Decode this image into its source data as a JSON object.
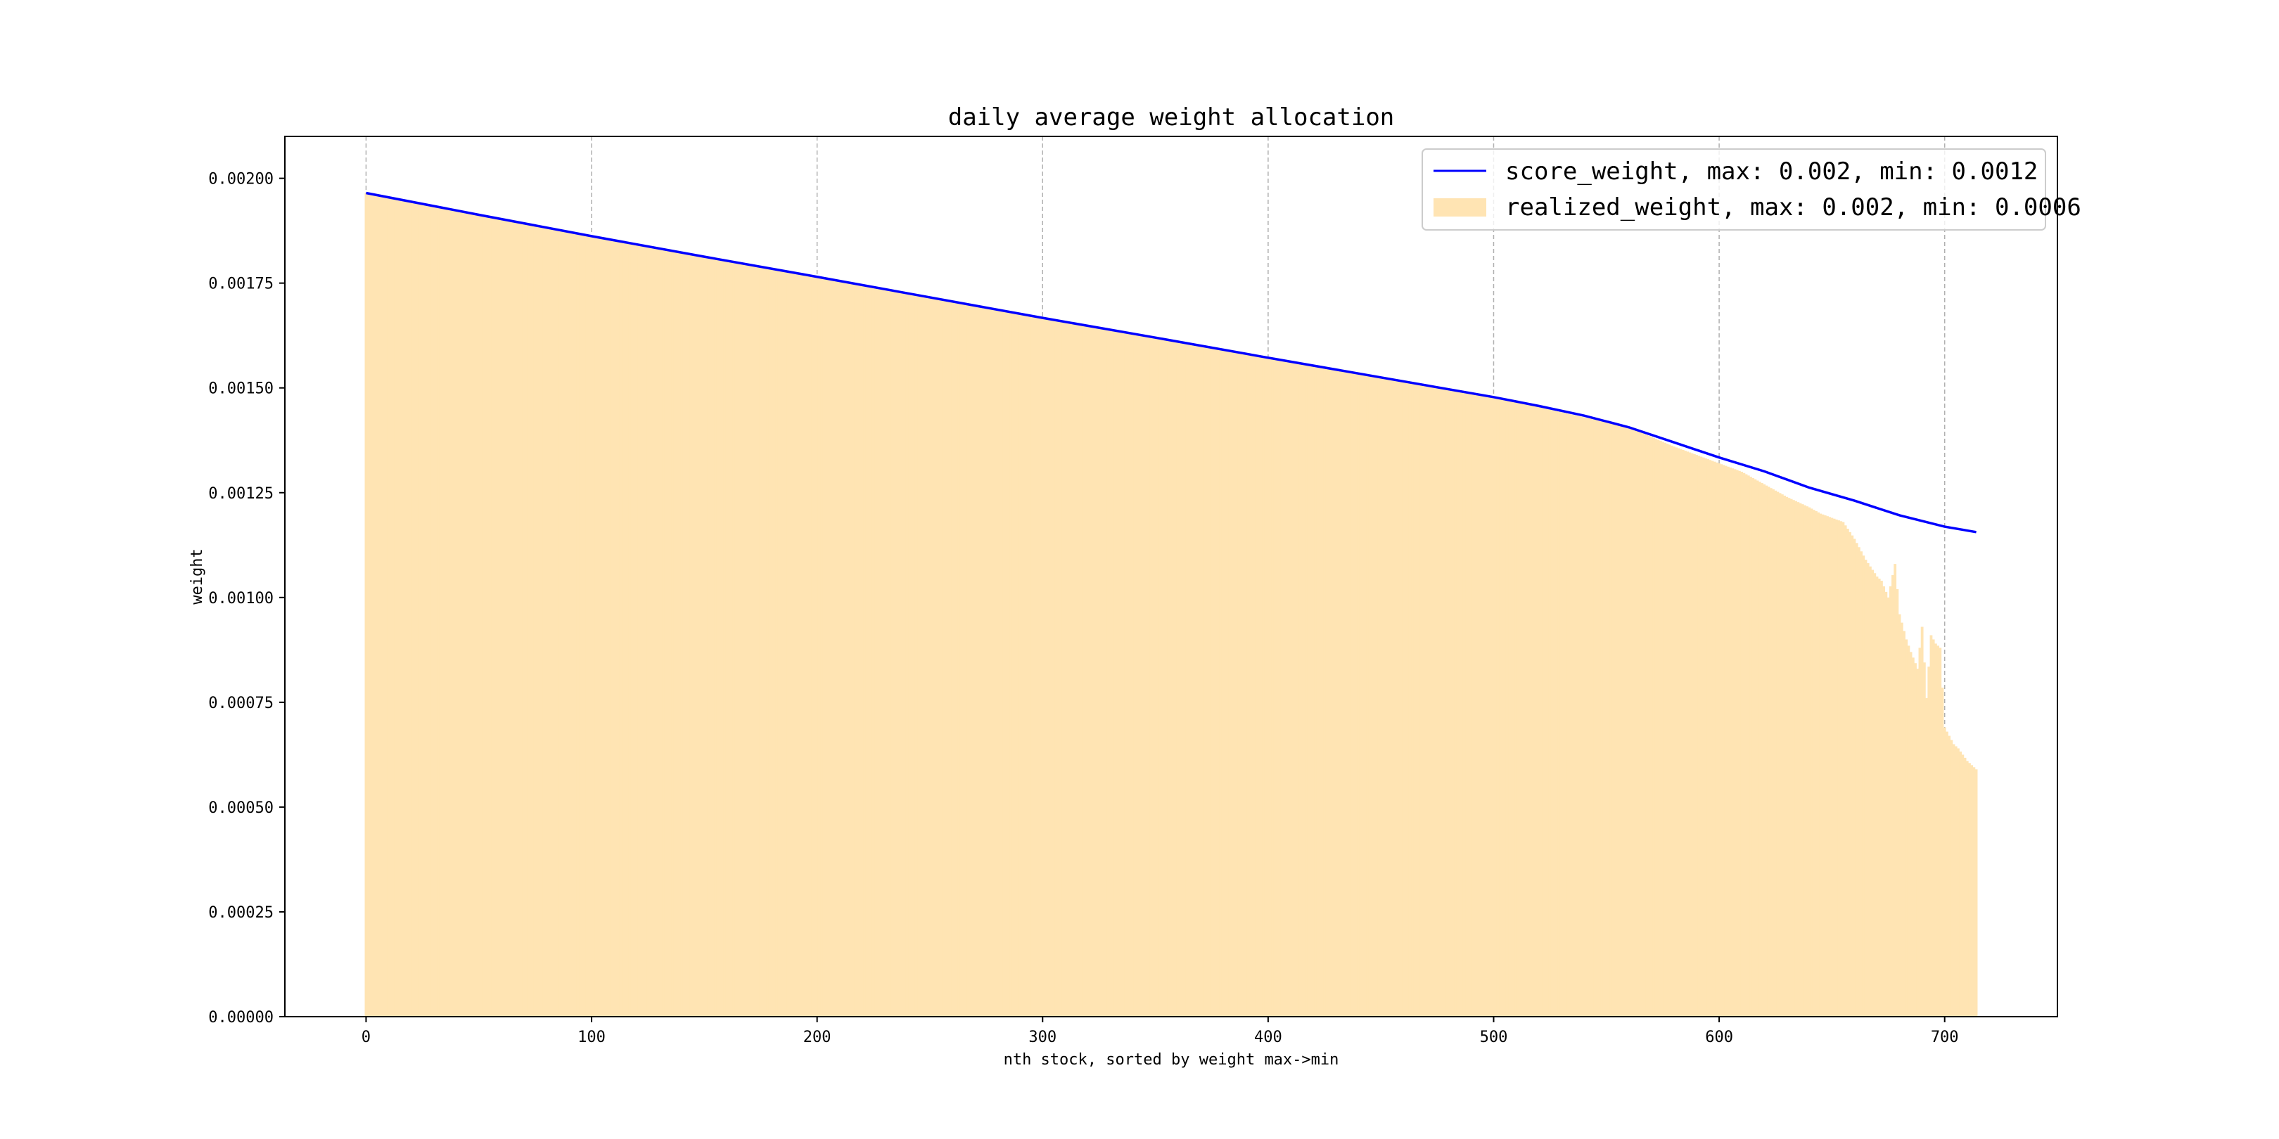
{
  "chart_data": {
    "type": "line",
    "title": "daily average weight allocation",
    "xlabel": "nth stock, sorted by weight max->min",
    "ylabel": "weight",
    "xlim": [
      -36,
      750
    ],
    "ylim": [
      0.0,
      0.0021
    ],
    "x_ticks": [
      0,
      100,
      200,
      300,
      400,
      500,
      600,
      700
    ],
    "x_tick_labels": [
      "0",
      "100",
      "200",
      "300",
      "400",
      "500",
      "600",
      "700"
    ],
    "y_ticks": [
      0.0,
      0.00025,
      0.0005,
      0.00075,
      0.001,
      0.00125,
      0.0015,
      0.00175,
      0.002
    ],
    "y_tick_labels": [
      "0.00000",
      "0.00025",
      "0.00050",
      "0.00075",
      "0.00100",
      "0.00125",
      "0.00150",
      "0.00175",
      "0.00200"
    ],
    "grid": "x-dashed",
    "legend_position": "top-right",
    "n_stocks": 715,
    "series": [
      {
        "name": "score_weight, max: 0.002, min: 0.0012",
        "kind": "line",
        "color": "#0000ff",
        "x": [
          0,
          50,
          100,
          150,
          200,
          250,
          300,
          350,
          400,
          450,
          500,
          520,
          540,
          560,
          580,
          600,
          620,
          640,
          660,
          680,
          700,
          714
        ],
        "values": [
          0.001965,
          0.001913,
          0.001862,
          0.001813,
          0.001765,
          0.001716,
          0.001667,
          0.00162,
          0.001572,
          0.001525,
          0.001478,
          0.001457,
          0.001434,
          0.001406,
          0.00137,
          0.001334,
          0.001301,
          0.001262,
          0.001231,
          0.001196,
          0.001169,
          0.001156
        ]
      },
      {
        "name": "realized_weight, max: 0.002, min: 0.0006",
        "kind": "bar",
        "color": "#ffe4b3",
        "x": [
          0,
          100,
          200,
          300,
          400,
          500,
          560,
          580,
          600,
          610,
          620,
          630,
          640,
          645,
          650,
          655,
          660,
          665,
          670,
          672,
          675,
          678,
          680,
          683,
          685,
          688,
          690,
          692,
          694,
          695,
          696,
          698,
          700,
          702,
          704,
          706,
          708,
          710,
          712,
          714
        ],
        "values": [
          0.001965,
          0.001862,
          0.001765,
          0.001667,
          0.001572,
          0.001478,
          0.001406,
          0.00136,
          0.00132,
          0.0013,
          0.00127,
          0.00124,
          0.001215,
          0.0012,
          0.00119,
          0.00118,
          0.00114,
          0.00109,
          0.00105,
          0.00104,
          0.001,
          0.00108,
          0.00096,
          0.0009,
          0.00087,
          0.00083,
          0.00093,
          0.00076,
          0.00091,
          0.0009,
          0.00089,
          0.00088,
          0.00069,
          0.00067,
          0.00065,
          0.00064,
          0.000625,
          0.00061,
          0.0006,
          0.00059
        ]
      }
    ]
  }
}
